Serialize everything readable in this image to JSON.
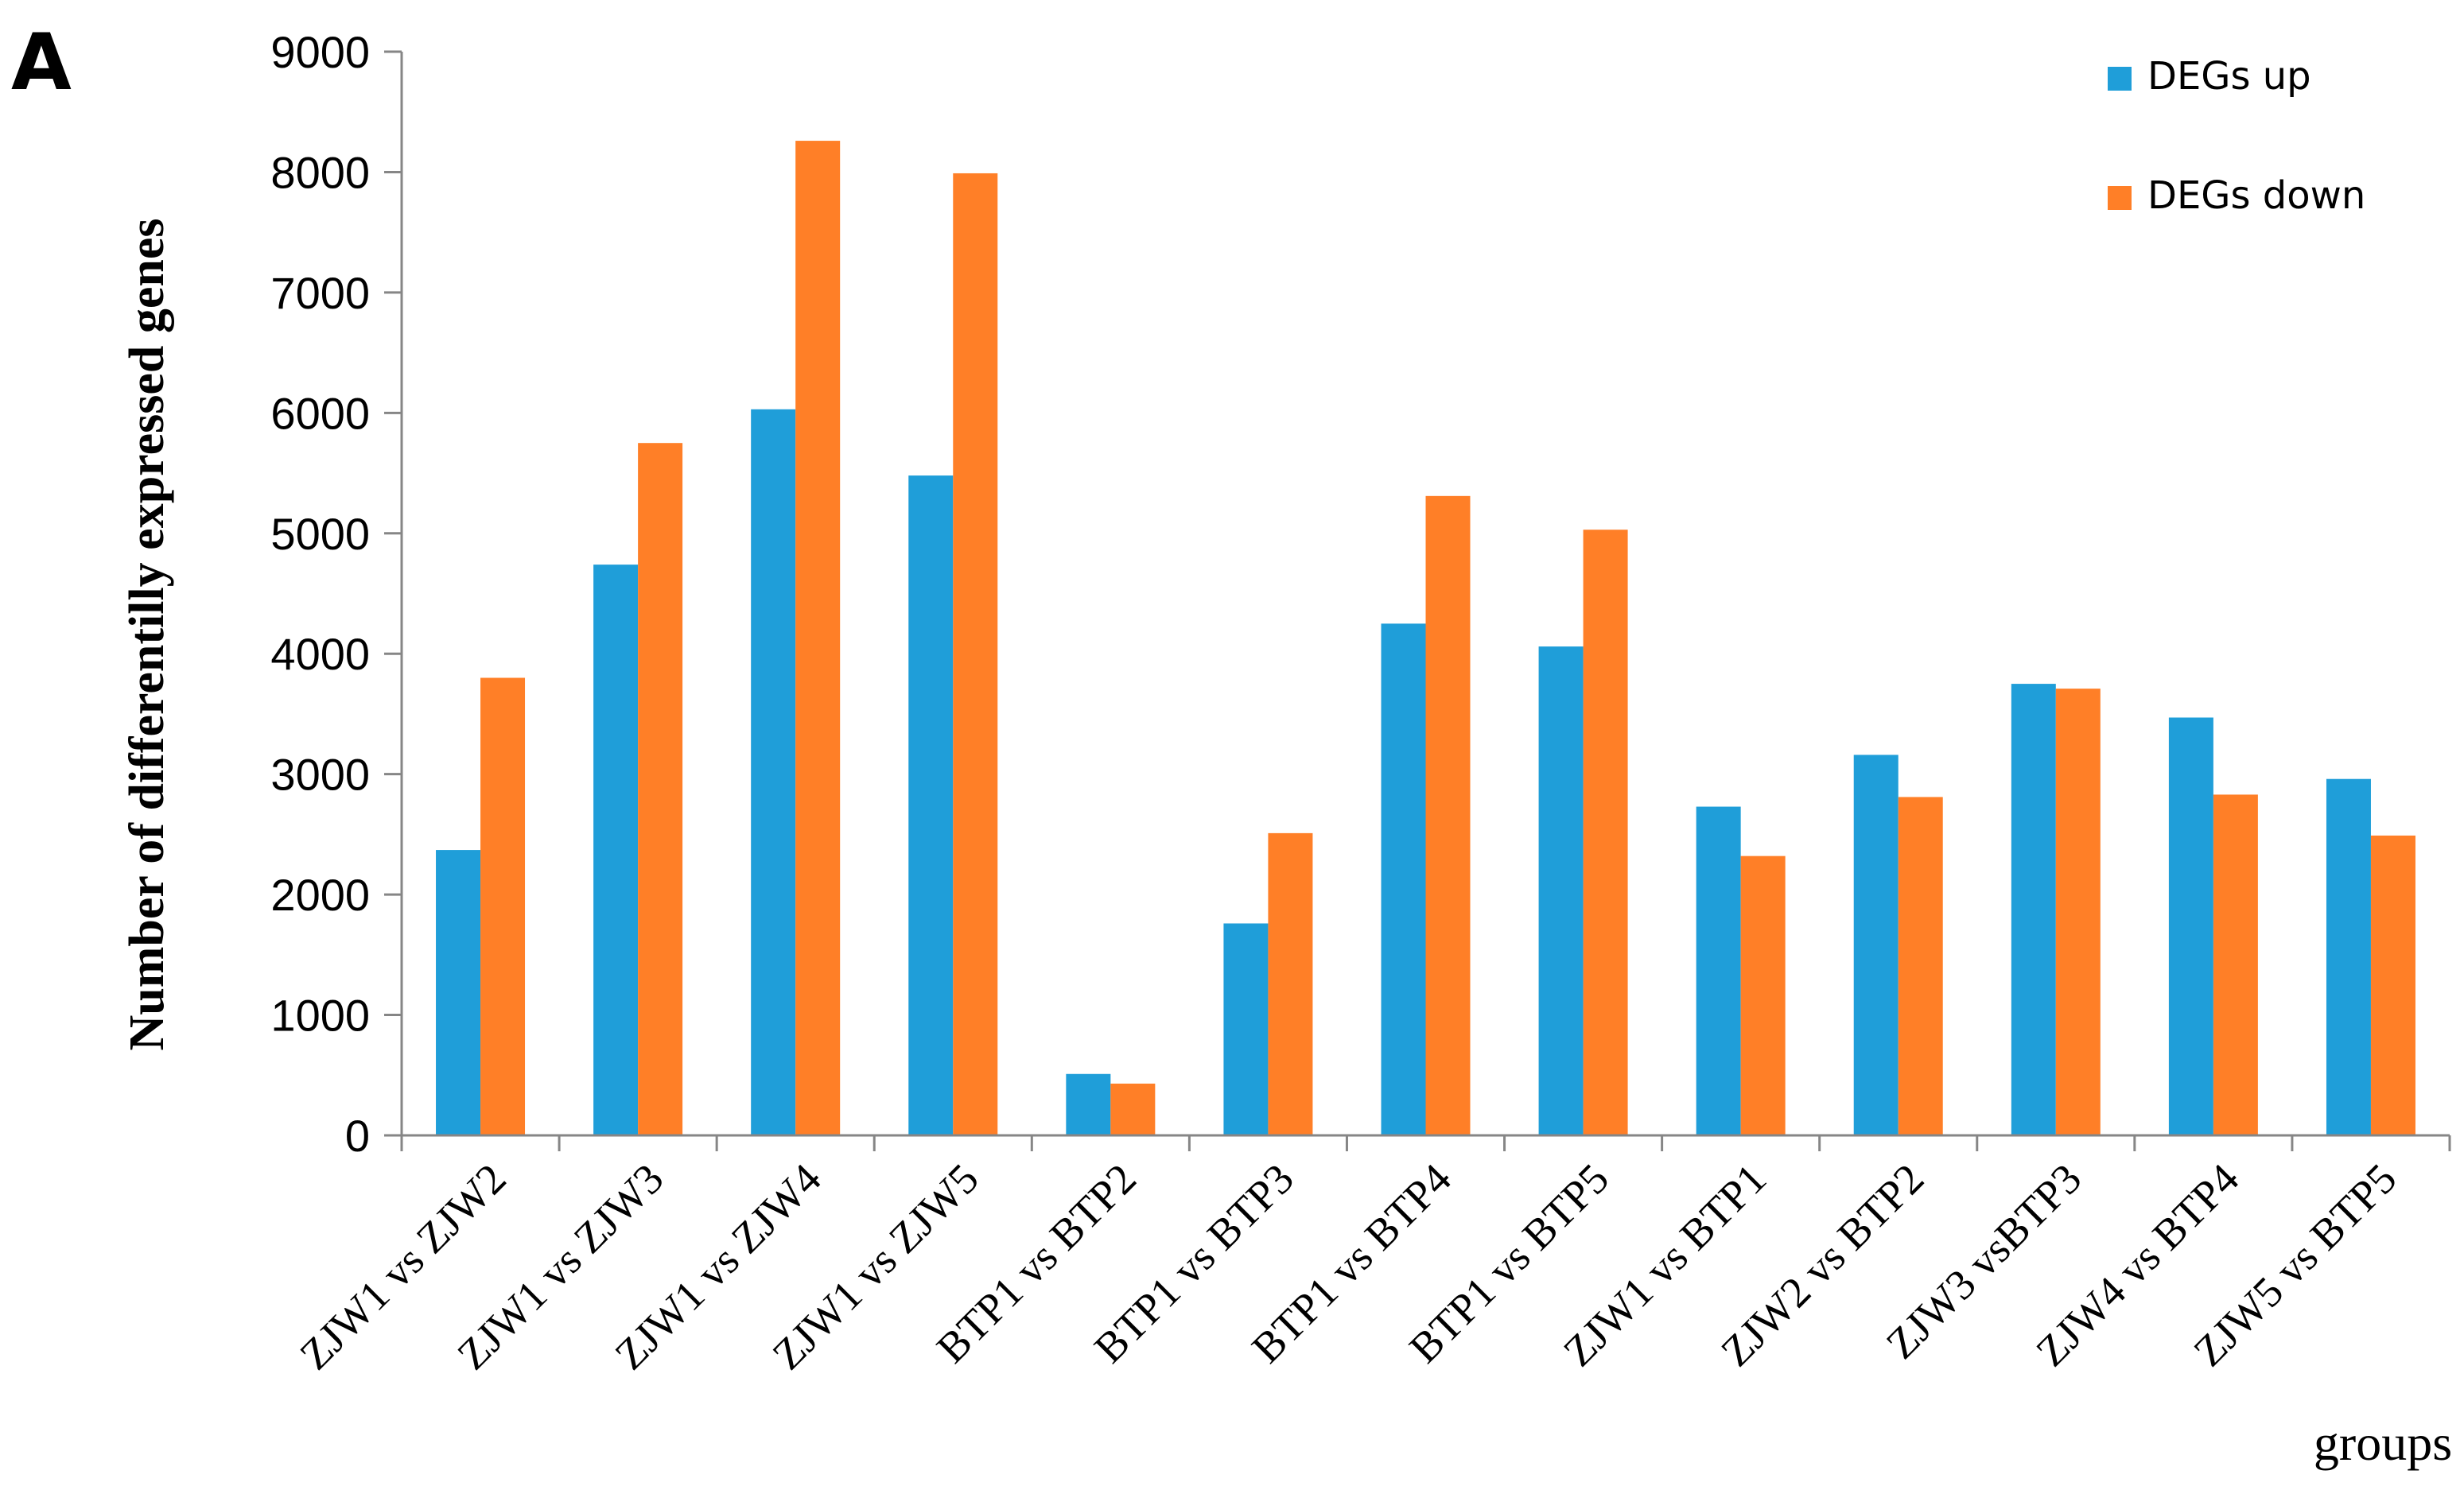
{
  "chart_data": {
    "type": "bar",
    "panel_label": "A",
    "title": "",
    "xlabel": "groups",
    "ylabel": "Number of differentilly expressed genes",
    "ylim": [
      0,
      9000
    ],
    "yticks": [
      0,
      1000,
      2000,
      3000,
      4000,
      5000,
      6000,
      7000,
      8000,
      9000
    ],
    "ytick_labels": [
      "0",
      "1000",
      "2000",
      "3000",
      "4000",
      "5000",
      "6000",
      "7000",
      "8000",
      "9000"
    ],
    "grid": false,
    "legend_position": "top-right",
    "categories": [
      "ZJW1 vs ZJW2",
      "ZJW1 vs ZJW3",
      "ZJW1 vs ZJW4",
      "ZJW1 vs ZJW5",
      "BTP1 vs BTP2",
      "BTP1 vs BTP3",
      "BTP1 vs BTP4",
      "BTP1 vs BTP5",
      "ZJW1 vs BTP1",
      "ZJW2 vs BTP2",
      "ZJW3 vsBTP3",
      "ZJW4 vs BTP4",
      "ZJW5 vs BTP5"
    ],
    "series": [
      {
        "name": "DEGs up",
        "color": "#1f9ed9",
        "values": [
          2370,
          4740,
          6030,
          5480,
          510,
          1760,
          4250,
          4060,
          2730,
          3160,
          3750,
          3470,
          2960
        ]
      },
      {
        "name": "DEGs down",
        "color": "#ff7f27",
        "values": [
          3800,
          5750,
          8260,
          7990,
          430,
          2510,
          5310,
          5030,
          2320,
          2810,
          3710,
          2830,
          2490
        ]
      }
    ]
  }
}
